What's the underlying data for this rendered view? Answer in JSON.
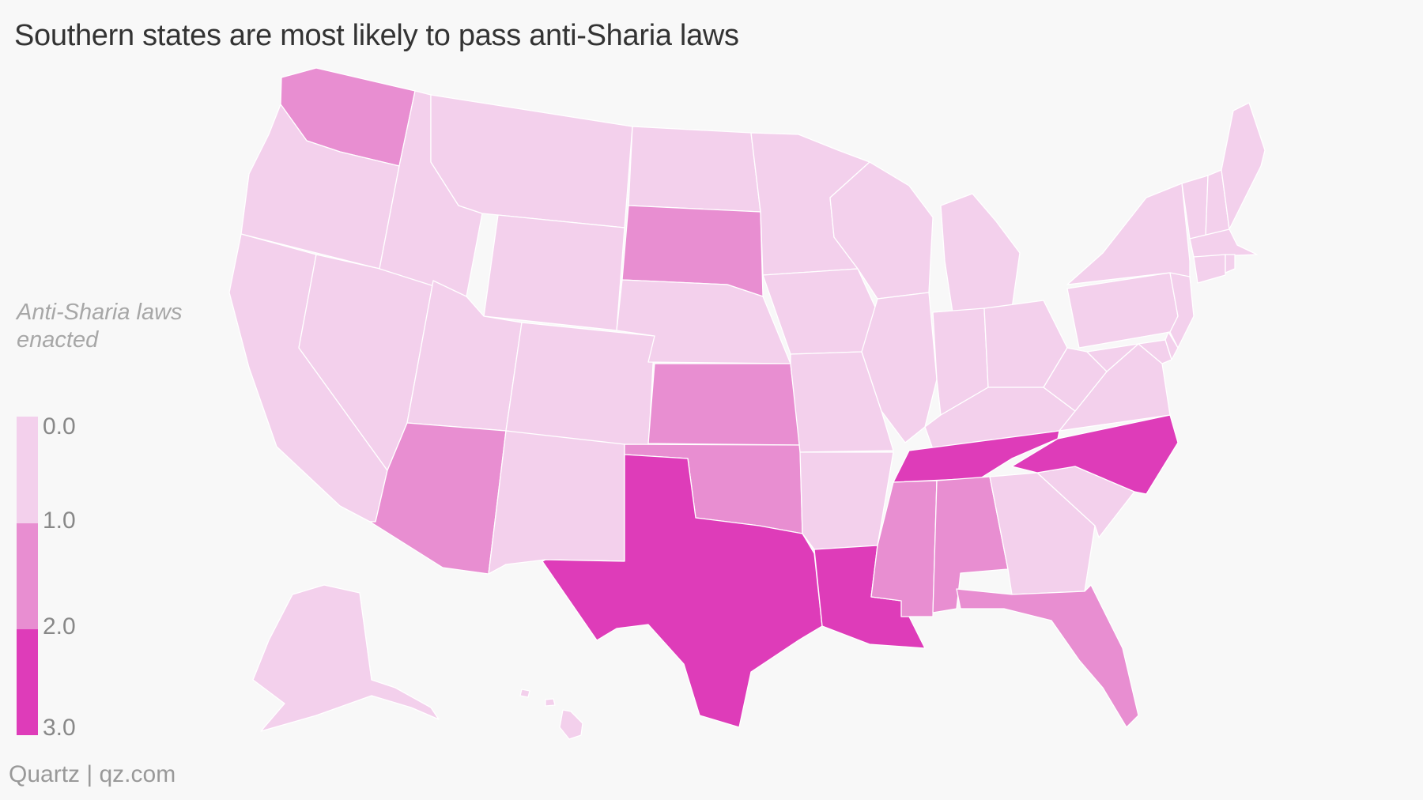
{
  "title": "Southern states are most likely to pass anti-Sharia laws",
  "source": "Quartz | qz.com",
  "legend": {
    "title": "Anti-Sharia laws enacted",
    "title_line1": "Anti-Sharia laws",
    "title_line2": "enacted",
    "ticks": [
      "0.0",
      "1.0",
      "2.0",
      "3.0"
    ],
    "bins": [
      {
        "range": "0.0–1.0",
        "color": "#f3d0ec"
      },
      {
        "range": "1.0–2.0",
        "color": "#e88ed1"
      },
      {
        "range": "2.0–3.0",
        "color": "#de3cb9"
      }
    ]
  },
  "map_data": {
    "type": "choropleth",
    "region": "United States",
    "value_label": "Anti-Sharia laws enacted",
    "color_scale": {
      "0": "#f3d0ec",
      "1": "#e88ed1",
      "2": "#de3cb9"
    },
    "states": {
      "WA": 1,
      "OR": 0,
      "CA": 0,
      "NV": 0,
      "ID": 0,
      "MT": 0,
      "WY": 0,
      "UT": 0,
      "AZ": 1,
      "CO": 0,
      "NM": 0,
      "ND": 0,
      "SD": 1,
      "NE": 0,
      "KS": 1,
      "OK": 1,
      "TX": 2,
      "MN": 0,
      "IA": 0,
      "MO": 0,
      "AR": 0,
      "LA": 2,
      "WI": 0,
      "IL": 0,
      "MI": 0,
      "IN": 0,
      "OH": 0,
      "KY": 0,
      "TN": 2,
      "MS": 1,
      "AL": 1,
      "GA": 0,
      "FL": 1,
      "SC": 0,
      "NC": 2,
      "VA": 0,
      "WV": 0,
      "PA": 0,
      "NY": 0,
      "VT": 0,
      "NH": 0,
      "ME": 0,
      "MA": 0,
      "RI": 0,
      "CT": 0,
      "NJ": 0,
      "DE": 0,
      "MD": 0,
      "AK": 0,
      "HI": 0
    }
  }
}
